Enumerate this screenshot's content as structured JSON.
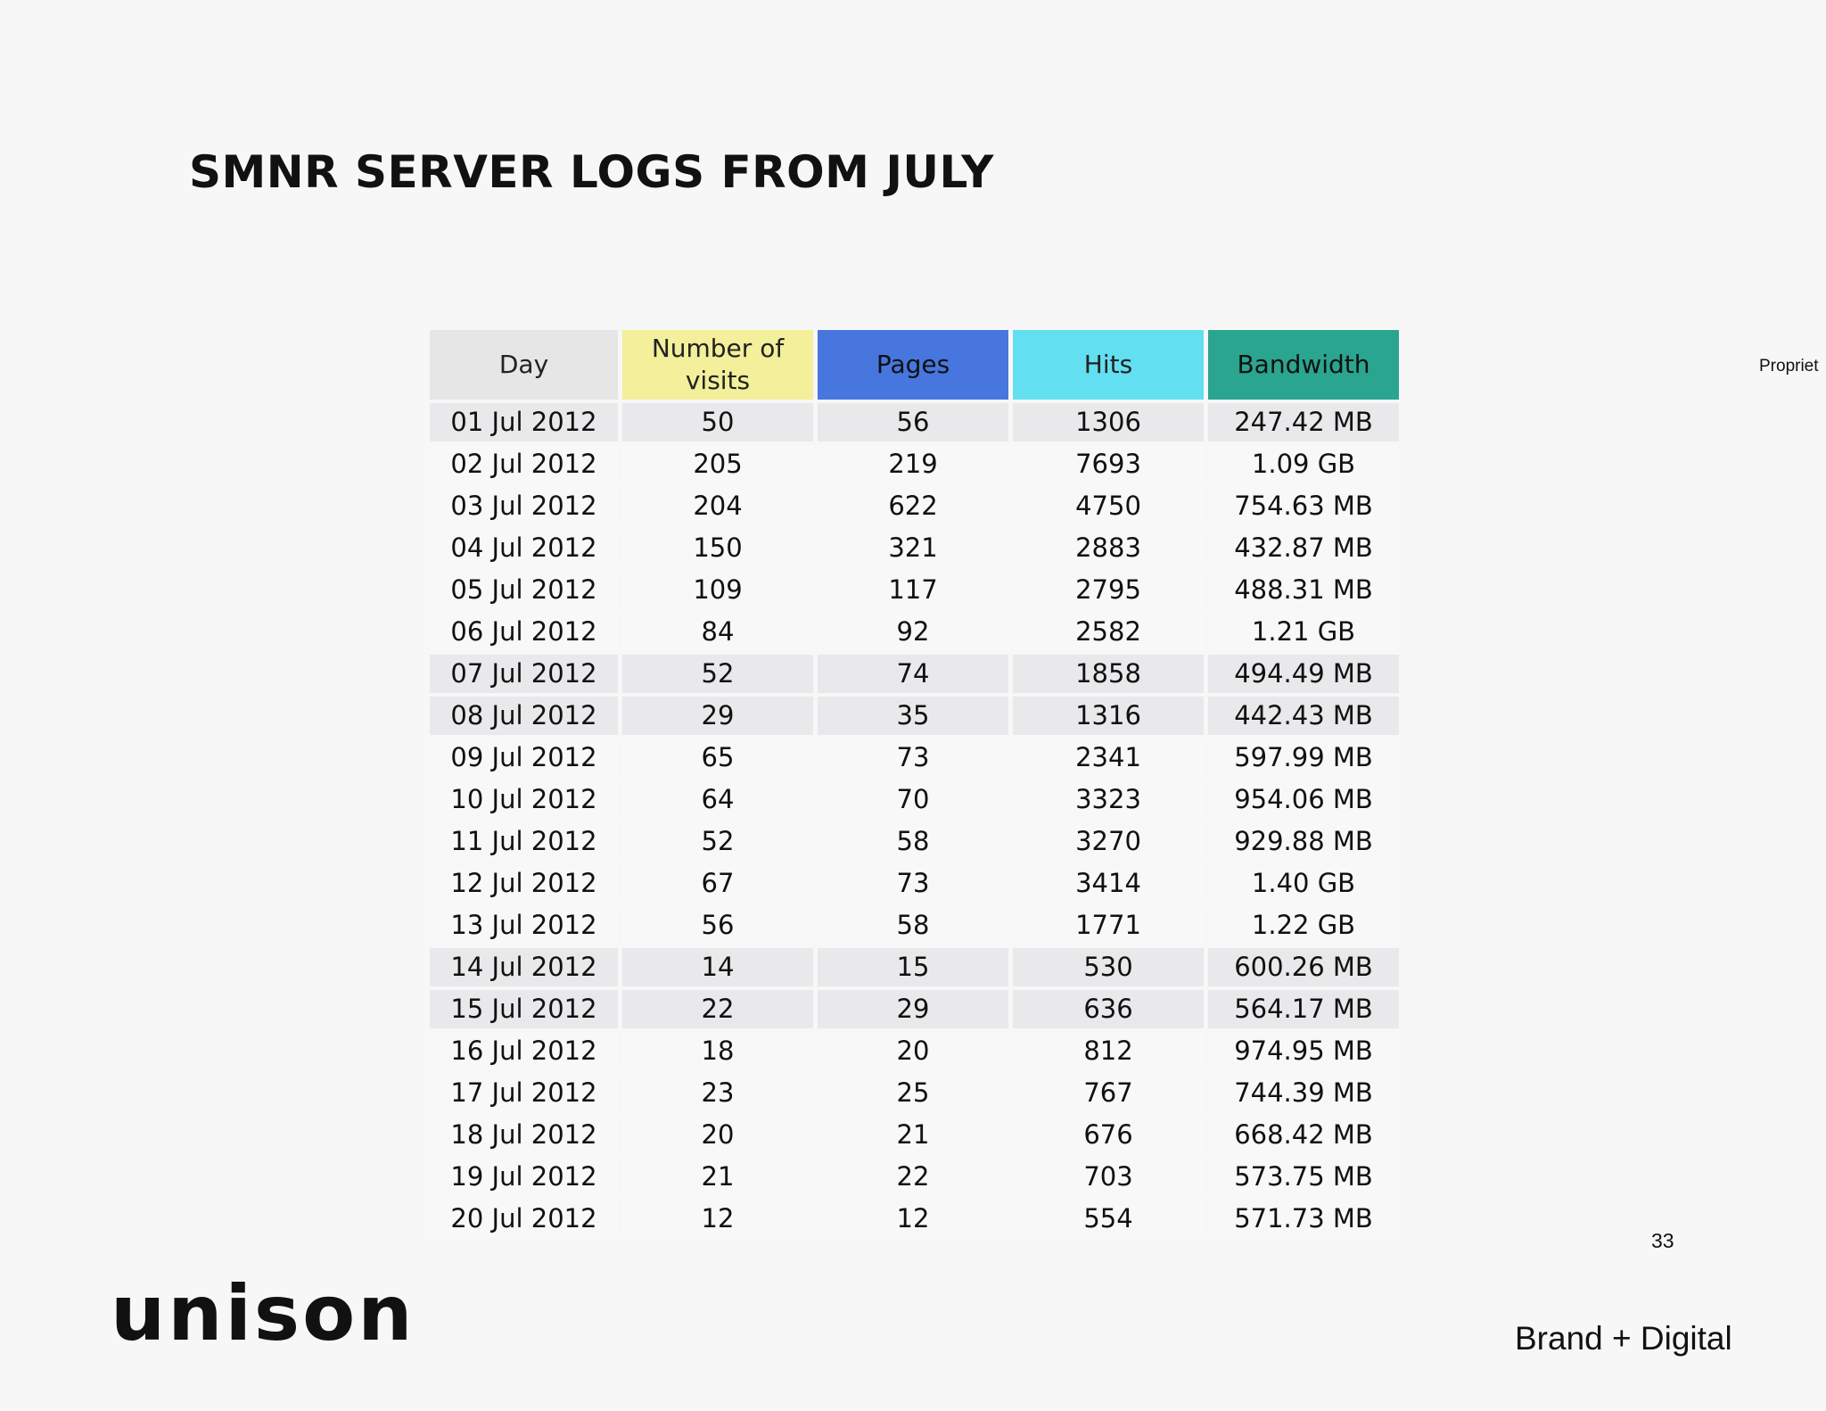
{
  "slide": {
    "title": "SMNR SERVER LOGS FROM JULY",
    "side_note": "Propriet",
    "page_number": "33"
  },
  "footer": {
    "logo_text": "unison",
    "tagline": "Brand + Digital"
  },
  "table": {
    "headers": {
      "day": "Day",
      "visits": "Number of visits",
      "pages": "Pages",
      "hits": "Hits",
      "bandwidth": "Bandwidth"
    },
    "header_colors": {
      "day": "#e6e6e6",
      "visits": "#f3ef9a",
      "pages": "#4777de",
      "hits": "#62dff0",
      "bandwidth": "#2aa58f"
    },
    "rows": [
      {
        "day": "01 Jul 2012",
        "visits": "50",
        "pages": "56",
        "hits": "1306",
        "bandwidth": "247.42 MB",
        "shaded": true
      },
      {
        "day": "02 Jul 2012",
        "visits": "205",
        "pages": "219",
        "hits": "7693",
        "bandwidth": "1.09 GB",
        "shaded": false
      },
      {
        "day": "03 Jul 2012",
        "visits": "204",
        "pages": "622",
        "hits": "4750",
        "bandwidth": "754.63 MB",
        "shaded": false
      },
      {
        "day": "04 Jul 2012",
        "visits": "150",
        "pages": "321",
        "hits": "2883",
        "bandwidth": "432.87 MB",
        "shaded": false
      },
      {
        "day": "05 Jul 2012",
        "visits": "109",
        "pages": "117",
        "hits": "2795",
        "bandwidth": "488.31 MB",
        "shaded": false
      },
      {
        "day": "06 Jul 2012",
        "visits": "84",
        "pages": "92",
        "hits": "2582",
        "bandwidth": "1.21 GB",
        "shaded": false
      },
      {
        "day": "07 Jul 2012",
        "visits": "52",
        "pages": "74",
        "hits": "1858",
        "bandwidth": "494.49 MB",
        "shaded": true
      },
      {
        "day": "08 Jul 2012",
        "visits": "29",
        "pages": "35",
        "hits": "1316",
        "bandwidth": "442.43 MB",
        "shaded": true
      },
      {
        "day": "09 Jul 2012",
        "visits": "65",
        "pages": "73",
        "hits": "2341",
        "bandwidth": "597.99 MB",
        "shaded": false
      },
      {
        "day": "10 Jul 2012",
        "visits": "64",
        "pages": "70",
        "hits": "3323",
        "bandwidth": "954.06 MB",
        "shaded": false
      },
      {
        "day": "11 Jul 2012",
        "visits": "52",
        "pages": "58",
        "hits": "3270",
        "bandwidth": "929.88 MB",
        "shaded": false
      },
      {
        "day": "12 Jul 2012",
        "visits": "67",
        "pages": "73",
        "hits": "3414",
        "bandwidth": "1.40 GB",
        "shaded": false
      },
      {
        "day": "13 Jul 2012",
        "visits": "56",
        "pages": "58",
        "hits": "1771",
        "bandwidth": "1.22 GB",
        "shaded": false
      },
      {
        "day": "14 Jul 2012",
        "visits": "14",
        "pages": "15",
        "hits": "530",
        "bandwidth": "600.26 MB",
        "shaded": true
      },
      {
        "day": "15 Jul 2012",
        "visits": "22",
        "pages": "29",
        "hits": "636",
        "bandwidth": "564.17 MB",
        "shaded": true
      },
      {
        "day": "16 Jul 2012",
        "visits": "18",
        "pages": "20",
        "hits": "812",
        "bandwidth": "974.95 MB",
        "shaded": false
      },
      {
        "day": "17 Jul 2012",
        "visits": "23",
        "pages": "25",
        "hits": "767",
        "bandwidth": "744.39 MB",
        "shaded": false
      },
      {
        "day": "18 Jul 2012",
        "visits": "20",
        "pages": "21",
        "hits": "676",
        "bandwidth": "668.42 MB",
        "shaded": false
      },
      {
        "day": "19 Jul 2012",
        "visits": "21",
        "pages": "22",
        "hits": "703",
        "bandwidth": "573.75 MB",
        "shaded": false
      },
      {
        "day": "20 Jul 2012",
        "visits": "12",
        "pages": "12",
        "hits": "554",
        "bandwidth": "571.73 MB",
        "shaded": false
      }
    ]
  }
}
